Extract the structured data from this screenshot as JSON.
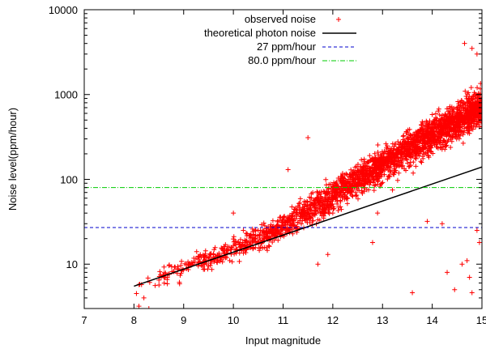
{
  "chart_data": {
    "type": "scatter",
    "title": "",
    "xlabel": "Input magnitude",
    "ylabel": "Noise level(ppm/hour)",
    "xlim": [
      7,
      15
    ],
    "ylim": [
      3,
      10000
    ],
    "yscale": "log",
    "x_ticks": [
      "7",
      "8",
      "9",
      "10",
      "11",
      "12",
      "13",
      "14",
      "15"
    ],
    "y_ticks": [
      "10",
      "100",
      "1000",
      "10000"
    ],
    "grid": false,
    "legend_position": "top-right",
    "legend": [
      {
        "label": "observed noise",
        "color": "#ff0000",
        "style": "plus"
      },
      {
        "label": "theoretical photon noise",
        "color": "#000000",
        "style": "solid"
      },
      {
        "label": "27 ppm/hour",
        "color": "#0000cc",
        "style": "dashed"
      },
      {
        "label": "80.0 ppm/hour",
        "color": "#00cc00",
        "style": "dashdot"
      }
    ],
    "series": [
      {
        "name": "observed noise",
        "kind": "scatter",
        "color": "#ff0000",
        "trend": {
          "x": [
            8.0,
            9.0,
            10.0,
            11.0,
            12.0,
            13.0,
            14.0,
            15.0
          ],
          "y": [
            5.5,
            9.0,
            15.0,
            28.0,
            65.0,
            150.0,
            330.0,
            750.0
          ]
        },
        "n_points": 2600,
        "outliers": [
          {
            "x": 8.1,
            "y": 3.2
          },
          {
            "x": 8.2,
            "y": 4.0
          },
          {
            "x": 8.3,
            "y": 3.0
          },
          {
            "x": 8.05,
            "y": 4.5
          },
          {
            "x": 10.0,
            "y": 40.0
          },
          {
            "x": 10.2,
            "y": 25.0
          },
          {
            "x": 10.1,
            "y": 18.0
          },
          {
            "x": 11.1,
            "y": 130.0
          },
          {
            "x": 11.5,
            "y": 310.0
          },
          {
            "x": 12.0,
            "y": 40.0
          },
          {
            "x": 11.7,
            "y": 10.0
          },
          {
            "x": 11.9,
            "y": 13.0
          },
          {
            "x": 12.5,
            "y": 100.0
          },
          {
            "x": 12.8,
            "y": 18.0
          },
          {
            "x": 12.9,
            "y": 40.0
          },
          {
            "x": 13.2,
            "y": 75.0
          },
          {
            "x": 13.6,
            "y": 4.6
          },
          {
            "x": 13.9,
            "y": 32.0
          },
          {
            "x": 14.2,
            "y": 30.0
          },
          {
            "x": 14.3,
            "y": 8.0
          },
          {
            "x": 14.45,
            "y": 5.0
          },
          {
            "x": 14.6,
            "y": 10.0
          },
          {
            "x": 14.7,
            "y": 11.0
          },
          {
            "x": 14.75,
            "y": 7.0
          },
          {
            "x": 14.8,
            "y": 4.6
          },
          {
            "x": 14.9,
            "y": 25.0
          },
          {
            "x": 14.95,
            "y": 18.0
          },
          {
            "x": 14.65,
            "y": 4000.0
          },
          {
            "x": 14.8,
            "y": 3500.0
          },
          {
            "x": 14.9,
            "y": 3000.0
          }
        ]
      },
      {
        "name": "theoretical photon noise",
        "kind": "line",
        "color": "#000000",
        "x": [
          8.0,
          15.0
        ],
        "y": [
          5.5,
          140.0
        ]
      },
      {
        "name": "27 ppm/hour",
        "kind": "hline",
        "color": "#0000cc",
        "y": 27
      },
      {
        "name": "80.0 ppm/hour",
        "kind": "hline",
        "color": "#00cc00",
        "y": 80
      }
    ]
  }
}
